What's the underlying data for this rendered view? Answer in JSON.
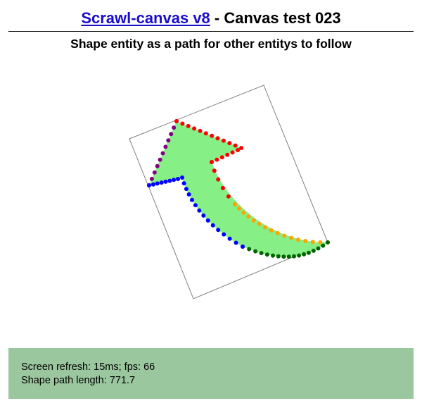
{
  "header": {
    "link_label": "Scrawl-canvas v8",
    "title_suffix": " - Canvas test 023",
    "subtitle": "Shape entity as a path for other entitys to follow"
  },
  "canvas": {
    "shape_fill_color": "#86ef86",
    "bounding_box_color": "#808080",
    "dot_groups": [
      {
        "name": "purple",
        "color": "#800080"
      },
      {
        "name": "red",
        "color": "#ff0000"
      },
      {
        "name": "orange",
        "color": "#ffa500"
      },
      {
        "name": "dark-green",
        "color": "#006400"
      },
      {
        "name": "blue",
        "color": "#0000ff"
      }
    ]
  },
  "report": {
    "refresh_line": "Screen refresh: 15ms; fps: 66",
    "length_line": "Shape path length: 771.7"
  }
}
